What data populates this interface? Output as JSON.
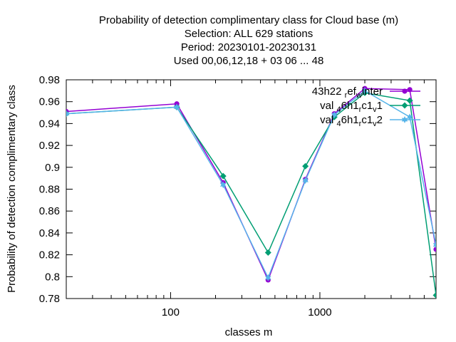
{
  "chart_data": {
    "type": "line",
    "title_lines": [
      "Probability of detection complimentary class  for Cloud base (m)",
      "Selection: ALL     629 stations",
      "Period: 20230101-20230131",
      "Used  00,06,12,18  + 03 06 ... 48"
    ],
    "xlabel": "classes m",
    "ylabel": "Probability of detection complimentary class",
    "x_scale": "log",
    "xlim": [
      20,
      6000
    ],
    "ylim": [
      0.78,
      0.98
    ],
    "y_ticks": [
      0.78,
      0.8,
      0.82,
      0.84,
      0.86,
      0.88,
      0.9,
      0.92,
      0.94,
      0.96,
      0.98
    ],
    "y_tick_labels": [
      "0.78",
      "0.8",
      "0.82",
      "0.84",
      "0.86",
      "0.88",
      "0.9",
      "0.92",
      "0.94",
      "0.96",
      "0.98"
    ],
    "x_ticks": [
      100,
      1000
    ],
    "x_tick_labels": [
      "100",
      "1000"
    ],
    "grid": false,
    "legend_position": "top-right",
    "series": [
      {
        "name": "43h22_ref_winter",
        "legend_base": "43h22",
        "legend_sub": "ref",
        "legend_rest": "winter",
        "color": "#9400d3",
        "marker": "circle",
        "x": [
          20,
          110,
          225,
          450,
          800,
          1250,
          2000,
          4000,
          6000
        ],
        "y": [
          0.951,
          0.958,
          0.886,
          0.797,
          0.889,
          0.949,
          0.972,
          0.971,
          0.825
        ]
      },
      {
        "name": "val_46h1_rc1_v1",
        "legend_base": "val",
        "legend_sub1": "4",
        "legend_mid1": "6h1",
        "legend_sub2": "r",
        "legend_mid2": "c1",
        "legend_sub3": "v",
        "legend_end": "1",
        "color": "#009e73",
        "marker": "diamond",
        "x": [
          20,
          110,
          225,
          450,
          800,
          1250,
          2000,
          4000,
          6000
        ],
        "y": [
          0.949,
          0.955,
          0.892,
          0.822,
          0.901,
          0.946,
          0.968,
          0.961,
          0.783
        ]
      },
      {
        "name": "val_46h1_rc1_v2",
        "legend_base": "val",
        "legend_sub1": "4",
        "legend_mid1": "6h1",
        "legend_sub2": "r",
        "legend_mid2": "c1",
        "legend_sub3": "v",
        "legend_end": "2",
        "color": "#56b4e9",
        "marker": "star",
        "x": [
          20,
          110,
          225,
          450,
          800,
          1250,
          2000,
          4000,
          6000
        ],
        "y": [
          0.949,
          0.955,
          0.884,
          0.799,
          0.888,
          0.948,
          0.97,
          0.946,
          0.829
        ]
      }
    ]
  }
}
